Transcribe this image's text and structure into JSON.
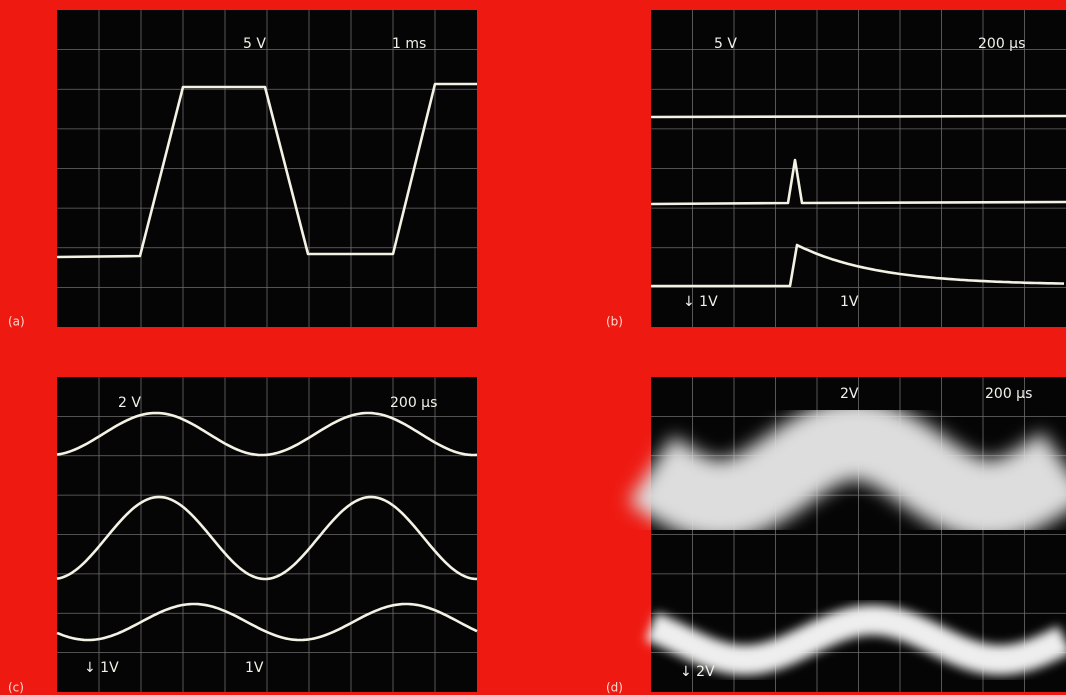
{
  "panels": [
    {
      "label": "(a)",
      "annotations": [
        "5 V",
        "1 ms"
      ]
    },
    {
      "label": "(b)",
      "annotations": [
        "5 V",
        "200 µs",
        "↓ 1V",
        "1V"
      ]
    },
    {
      "label": "(c)",
      "annotations": [
        "2 V",
        "200 µs",
        "↓ 1V",
        "1V"
      ]
    },
    {
      "label": "(d)",
      "annotations": [
        "2V",
        "200 µs",
        "↓ 2V"
      ]
    }
  ]
}
